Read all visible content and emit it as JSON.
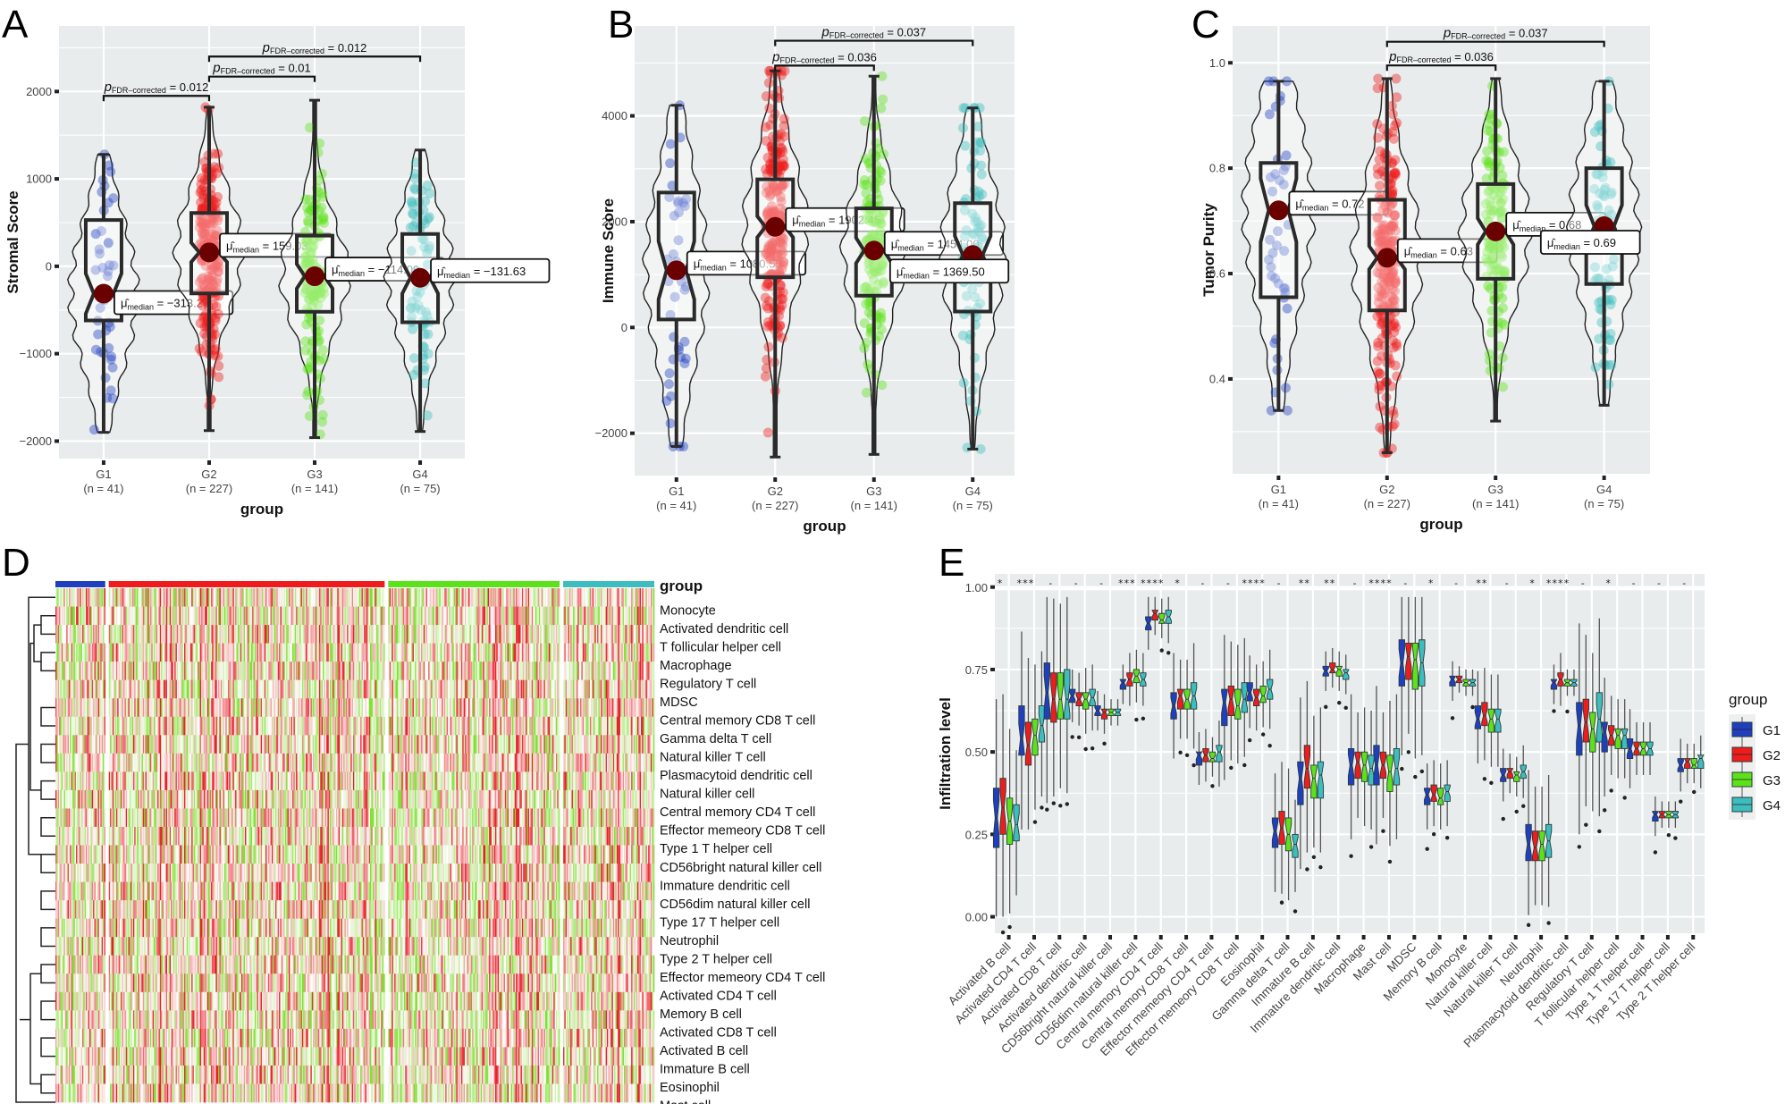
{
  "figure": {
    "panels": [
      "A",
      "B",
      "C",
      "D",
      "E"
    ]
  },
  "colors": {
    "G1": "#1f3fbf",
    "G2": "#ee1c1c",
    "G3": "#5ce21a",
    "G4": "#3dbdbd",
    "median_point": "#6b0000",
    "panel_bg": "#e8ecec",
    "heat_low": "#7fe030",
    "heat_mid": "#ffffff",
    "heat_high": "#e8202a"
  },
  "chart_data": [
    {
      "id": "A",
      "type": "violin-box",
      "title": "",
      "xlabel": "group",
      "ylabel": "Stromal Score",
      "ylim": [
        -2200,
        2750
      ],
      "yticks": [
        -2000,
        -1000,
        0,
        1000,
        2000
      ],
      "ytick_labels": [
        "−2000",
        "−1000",
        "0",
        "1000",
        "2000"
      ],
      "grid": true,
      "categories": [
        "G1",
        "G2",
        "G3",
        "G4"
      ],
      "n_labels": [
        "(n = 41)",
        "(n = 227)",
        "(n = 141)",
        "(n = 75)"
      ],
      "groups": [
        {
          "name": "G1",
          "n": 41,
          "min": -1900,
          "q1": -620,
          "median": -313.27,
          "q3": 530,
          "max": 1280,
          "notch": 230,
          "median_label": "−313.27"
        },
        {
          "name": "G2",
          "n": 227,
          "min": -1880,
          "q1": -310,
          "median": 159.03,
          "q3": 610,
          "max": 1820,
          "notch": 110,
          "median_label": "159.03"
        },
        {
          "name": "G3",
          "n": 141,
          "min": -1960,
          "q1": -520,
          "median": -114.09,
          "q3": 350,
          "max": 1900,
          "notch": 140,
          "median_label": "−114.09"
        },
        {
          "name": "G4",
          "n": 75,
          "min": -1890,
          "q1": -640,
          "median": -131.63,
          "q3": 370,
          "max": 1330,
          "notch": 180,
          "median_label": "−131.63"
        }
      ],
      "comparisons": [
        {
          "from": "G1",
          "to": "G2",
          "p_label_main": "p",
          "p_label_sub": "FDR–corrected",
          "p_value": "= 0.012",
          "y": 1950
        },
        {
          "from": "G2",
          "to": "G3",
          "p_label_main": "p",
          "p_label_sub": "FDR–corrected",
          "p_value": "= 0.01",
          "y": 2170
        },
        {
          "from": "G2",
          "to": "G4",
          "p_label_main": "p",
          "p_label_sub": "FDR–corrected",
          "p_value": "= 0.012",
          "y": 2400
        }
      ],
      "median_prefix": "μ̂",
      "median_sub": "median"
    },
    {
      "id": "B",
      "type": "violin-box",
      "xlabel": "group",
      "ylabel": "Immune Score",
      "ylim": [
        -2800,
        5700
      ],
      "yticks": [
        -2000,
        0,
        2000,
        4000
      ],
      "ytick_labels": [
        "−2000",
        "0",
        "2000",
        "4000"
      ],
      "grid": true,
      "categories": [
        "G1",
        "G2",
        "G3",
        "G4"
      ],
      "n_labels": [
        "(n = 41)",
        "(n = 227)",
        "(n = 141)",
        "(n = 75)"
      ],
      "groups": [
        {
          "name": "G1",
          "n": 41,
          "min": -2250,
          "q1": 150,
          "median": 1080.55,
          "q3": 2550,
          "max": 4200,
          "notch": 550,
          "median_label": "1080.55"
        },
        {
          "name": "G2",
          "n": 227,
          "min": -2450,
          "q1": 950,
          "median": 1902.45,
          "q3": 2800,
          "max": 4850,
          "notch": 200,
          "median_label": "1902.45"
        },
        {
          "name": "G3",
          "n": 141,
          "min": -2400,
          "q1": 600,
          "median": 1454.0,
          "q3": 2250,
          "max": 4750,
          "notch": 240,
          "median_label": "1454.00"
        },
        {
          "name": "G4",
          "n": 75,
          "min": -2300,
          "q1": 300,
          "median": 1369.5,
          "q3": 2350,
          "max": 4150,
          "notch": 360,
          "median_label": "1369.50"
        }
      ],
      "comparisons": [
        {
          "from": "G2",
          "to": "G3",
          "p_label_main": "p",
          "p_label_sub": "FDR–corrected",
          "p_value": "= 0.036",
          "y": 4950
        },
        {
          "from": "G2",
          "to": "G4",
          "p_label_main": "p",
          "p_label_sub": "FDR–corrected",
          "p_value": "= 0.037",
          "y": 5420
        }
      ],
      "median_prefix": "μ̂",
      "median_sub": "median"
    },
    {
      "id": "C",
      "type": "violin-box",
      "xlabel": "group",
      "ylabel": "Tumor Purity",
      "ylim": [
        0.22,
        1.07
      ],
      "yticks": [
        0.4,
        0.6,
        0.8,
        1.0
      ],
      "ytick_labels": [
        "0.4",
        "0.6",
        "0.8",
        "1.0"
      ],
      "grid": true,
      "categories": [
        "G1",
        "G2",
        "G3",
        "G4"
      ],
      "n_labels": [
        "(n = 41)",
        "(n = 227)",
        "(n = 141)",
        "(n = 75)"
      ],
      "groups": [
        {
          "name": "G1",
          "n": 41,
          "min": 0.34,
          "q1": 0.555,
          "median": 0.72,
          "q3": 0.81,
          "max": 0.965,
          "notch": 0.06,
          "median_label": "0.72"
        },
        {
          "name": "G2",
          "n": 227,
          "min": 0.26,
          "q1": 0.53,
          "median": 0.63,
          "q3": 0.74,
          "max": 0.97,
          "notch": 0.022,
          "median_label": "0.63"
        },
        {
          "name": "G3",
          "n": 141,
          "min": 0.32,
          "q1": 0.59,
          "median": 0.68,
          "q3": 0.77,
          "max": 0.97,
          "notch": 0.025,
          "median_label": "0.68"
        },
        {
          "name": "G4",
          "n": 75,
          "min": 0.35,
          "q1": 0.58,
          "median": 0.69,
          "q3": 0.8,
          "max": 0.965,
          "notch": 0.04,
          "median_label": "0.69"
        }
      ],
      "comparisons": [
        {
          "from": "G2",
          "to": "G3",
          "p_label_main": "p",
          "p_label_sub": "FDR–corrected",
          "p_value": "= 0.036",
          "y": 0.995
        },
        {
          "from": "G2",
          "to": "G4",
          "p_label_main": "p",
          "p_label_sub": "FDR–corrected",
          "p_value": "= 0.037",
          "y": 1.04
        }
      ],
      "median_prefix": "μ̂",
      "median_sub": "median"
    },
    {
      "id": "D",
      "type": "heatmap",
      "annotation_title": "group",
      "column_groups": [
        {
          "name": "G1",
          "n": 41
        },
        {
          "name": "G2",
          "n": 227
        },
        {
          "name": "G3",
          "n": 141
        },
        {
          "name": "G4",
          "n": 75
        }
      ],
      "rows": [
        "Monocyte",
        "Activated dendritic cell",
        "T follicular helper cell",
        "Macrophage",
        "Regulatory T cell",
        "MDSC",
        "Central memory CD8 T cell",
        "Gamma delta T cell",
        "Natural killer T cell",
        "Plasmacytoid dendritic cell",
        "Natural killer cell",
        "Central memory CD4 T cell",
        "Effector memeory CD8 T cell",
        "Type 1 T helper cell",
        "CD56bright natural killer cell",
        "Immature dendritic cell",
        "CD56dim natural killer cell",
        "Type 17 T helper cell",
        "Neutrophil",
        "Type 2 T helper cell",
        "Effector memeory CD4 T cell",
        "Activated CD4 T cell",
        "Memory B cell",
        "Activated CD8 T cell",
        "Activated B cell",
        "Immature  B cell",
        "Eosinophil",
        "Mast cell"
      ],
      "value_scale": "z-score (green low, white mid, red high)"
    },
    {
      "id": "E",
      "type": "grouped-box",
      "xlabel": "",
      "ylabel": "Infiltration level",
      "ylim": [
        -0.05,
        1.04
      ],
      "yticks": [
        0.0,
        0.25,
        0.5,
        0.75,
        1.0
      ],
      "ytick_labels": [
        "0.00",
        "0.25",
        "0.50",
        "0.75",
        "1.00"
      ],
      "grid": true,
      "legend": {
        "title": "group",
        "position": "right",
        "entries": [
          "G1",
          "G2",
          "G3",
          "G4"
        ]
      },
      "categories": [
        "Activated B cell",
        "Activated CD4 T cell",
        "Activated CD8 T cell",
        "Activated dendritic cell",
        "CD56bright natural killer cell",
        "CD56dim natural killer cell",
        "Central memory CD4 T cell",
        "Central memory CD8 T cell",
        "Effector memeory CD4 T cell",
        "Effector memeory CD8 T cell",
        "Eosinophil",
        "Gamma delta T cell",
        "Immature  B cell",
        "Immature dendritic cell",
        "Macrophage",
        "Mast cell",
        "MDSC",
        "Memory B cell",
        "Monocyte",
        "Natural killer cell",
        "Natural killer T cell",
        "Neutrophil",
        "Plasmacytoid dendritic cell",
        "Regulatory T cell",
        "T follicular helper cell",
        "Type 1 T helper cell",
        "Type 17 T helper cell",
        "Type 2 T helper cell"
      ],
      "significance": [
        "*",
        "***",
        "-",
        "-",
        "-",
        "***",
        "****",
        "*",
        "-",
        "-",
        "****",
        "-",
        "**",
        "**",
        "-",
        "****",
        "-",
        "*",
        "-",
        "**",
        "-",
        "*",
        "****",
        "-",
        "*",
        "-",
        "-",
        "-"
      ],
      "series": [
        {
          "name": "G1",
          "medians": [
            0.3,
            0.54,
            0.68,
            0.67,
            0.625,
            0.71,
            0.89,
            0.64,
            0.49,
            0.65,
            0.68,
            0.26,
            0.42,
            0.745,
            0.46,
            0.46,
            0.77,
            0.37,
            0.72,
            0.6,
            0.43,
            0.22,
            0.71,
            0.58,
            0.56,
            0.51,
            0.31,
            0.46
          ],
          "q1": [
            0.21,
            0.49,
            0.6,
            0.65,
            0.61,
            0.69,
            0.87,
            0.6,
            0.46,
            0.58,
            0.655,
            0.21,
            0.34,
            0.73,
            0.4,
            0.4,
            0.7,
            0.34,
            0.7,
            0.57,
            0.41,
            0.17,
            0.69,
            0.49,
            0.5,
            0.48,
            0.29,
            0.44
          ],
          "q3": [
            0.39,
            0.64,
            0.77,
            0.69,
            0.64,
            0.72,
            0.91,
            0.68,
            0.5,
            0.69,
            0.71,
            0.3,
            0.47,
            0.76,
            0.51,
            0.52,
            0.84,
            0.39,
            0.73,
            0.64,
            0.45,
            0.28,
            0.72,
            0.65,
            0.59,
            0.54,
            0.32,
            0.48
          ]
        },
        {
          "name": "G2",
          "medians": [
            0.33,
            0.52,
            0.66,
            0.66,
            0.62,
            0.72,
            0.92,
            0.67,
            0.49,
            0.66,
            0.665,
            0.27,
            0.45,
            0.75,
            0.47,
            0.46,
            0.79,
            0.37,
            0.72,
            0.61,
            0.44,
            0.21,
            0.72,
            0.59,
            0.55,
            0.51,
            0.31,
            0.47
          ],
          "q1": [
            0.25,
            0.46,
            0.59,
            0.64,
            0.6,
            0.7,
            0.9,
            0.63,
            0.47,
            0.61,
            0.64,
            0.22,
            0.39,
            0.74,
            0.42,
            0.42,
            0.72,
            0.35,
            0.71,
            0.58,
            0.42,
            0.17,
            0.7,
            0.53,
            0.52,
            0.49,
            0.3,
            0.45
          ],
          "q3": [
            0.42,
            0.59,
            0.74,
            0.68,
            0.63,
            0.74,
            0.93,
            0.69,
            0.51,
            0.7,
            0.69,
            0.32,
            0.52,
            0.77,
            0.5,
            0.5,
            0.83,
            0.4,
            0.73,
            0.65,
            0.45,
            0.26,
            0.74,
            0.66,
            0.58,
            0.53,
            0.32,
            0.48
          ]
        },
        {
          "name": "G3",
          "medians": [
            0.29,
            0.55,
            0.66,
            0.66,
            0.62,
            0.73,
            0.9,
            0.66,
            0.48,
            0.64,
            0.67,
            0.25,
            0.42,
            0.75,
            0.46,
            0.44,
            0.78,
            0.36,
            0.71,
            0.6,
            0.43,
            0.22,
            0.71,
            0.57,
            0.55,
            0.51,
            0.31,
            0.46
          ],
          "q1": [
            0.22,
            0.49,
            0.6,
            0.63,
            0.61,
            0.71,
            0.89,
            0.63,
            0.47,
            0.6,
            0.65,
            0.2,
            0.36,
            0.73,
            0.41,
            0.38,
            0.69,
            0.34,
            0.7,
            0.56,
            0.41,
            0.17,
            0.7,
            0.5,
            0.51,
            0.49,
            0.3,
            0.45
          ],
          "q3": [
            0.36,
            0.6,
            0.74,
            0.68,
            0.63,
            0.75,
            0.92,
            0.69,
            0.5,
            0.69,
            0.7,
            0.3,
            0.46,
            0.76,
            0.5,
            0.49,
            0.83,
            0.39,
            0.72,
            0.63,
            0.44,
            0.26,
            0.72,
            0.62,
            0.57,
            0.53,
            0.32,
            0.48
          ]
        },
        {
          "name": "G4",
          "medians": [
            0.28,
            0.58,
            0.66,
            0.665,
            0.62,
            0.72,
            0.91,
            0.67,
            0.5,
            0.66,
            0.69,
            0.22,
            0.43,
            0.74,
            0.45,
            0.45,
            0.77,
            0.38,
            0.71,
            0.6,
            0.44,
            0.23,
            0.71,
            0.6,
            0.55,
            0.51,
            0.31,
            0.48
          ],
          "q1": [
            0.23,
            0.53,
            0.6,
            0.64,
            0.61,
            0.7,
            0.89,
            0.63,
            0.47,
            0.62,
            0.66,
            0.18,
            0.36,
            0.72,
            0.4,
            0.4,
            0.7,
            0.35,
            0.7,
            0.56,
            0.42,
            0.18,
            0.7,
            0.53,
            0.51,
            0.49,
            0.3,
            0.45
          ],
          "q3": [
            0.34,
            0.64,
            0.75,
            0.69,
            0.63,
            0.74,
            0.93,
            0.71,
            0.52,
            0.71,
            0.72,
            0.25,
            0.47,
            0.75,
            0.49,
            0.51,
            0.84,
            0.4,
            0.72,
            0.63,
            0.46,
            0.28,
            0.72,
            0.68,
            0.57,
            0.53,
            0.32,
            0.49
          ]
        }
      ]
    }
  ]
}
